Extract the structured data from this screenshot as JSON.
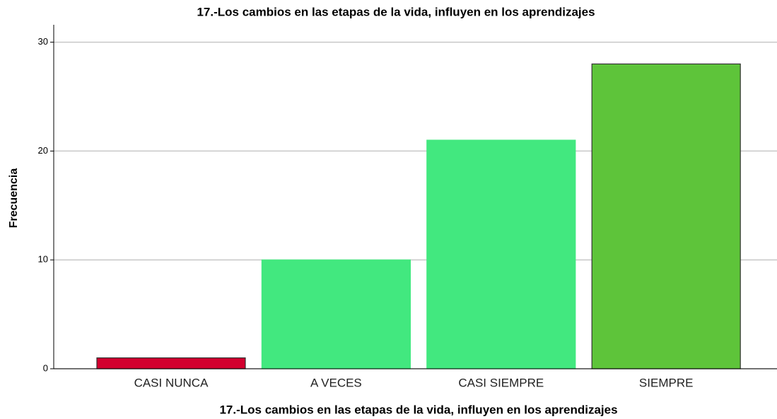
{
  "chart_data": {
    "type": "bar",
    "title": "17.-Los cambios en las etapas de la vida, influyen en los aprendizajes",
    "x_label": "17.-Los cambios en las etapas de la vida, influyen en los aprendizajes",
    "y_label": "Frecuencia",
    "categories": [
      "CASI NUNCA",
      "A VECES",
      "CASI SIEMPRE",
      "SIEMPRE"
    ],
    "values": [
      1,
      10,
      21,
      28
    ],
    "colors": [
      "#d2002e",
      "#42e87f",
      "#42e87f",
      "#5ec43a"
    ],
    "edgecolors": [
      "#333333",
      "#42e87f",
      "#42e87f",
      "#333333"
    ],
    "ylim": [
      0,
      31.6
    ],
    "yticks": [
      0,
      10,
      20,
      30
    ],
    "grid": true
  }
}
